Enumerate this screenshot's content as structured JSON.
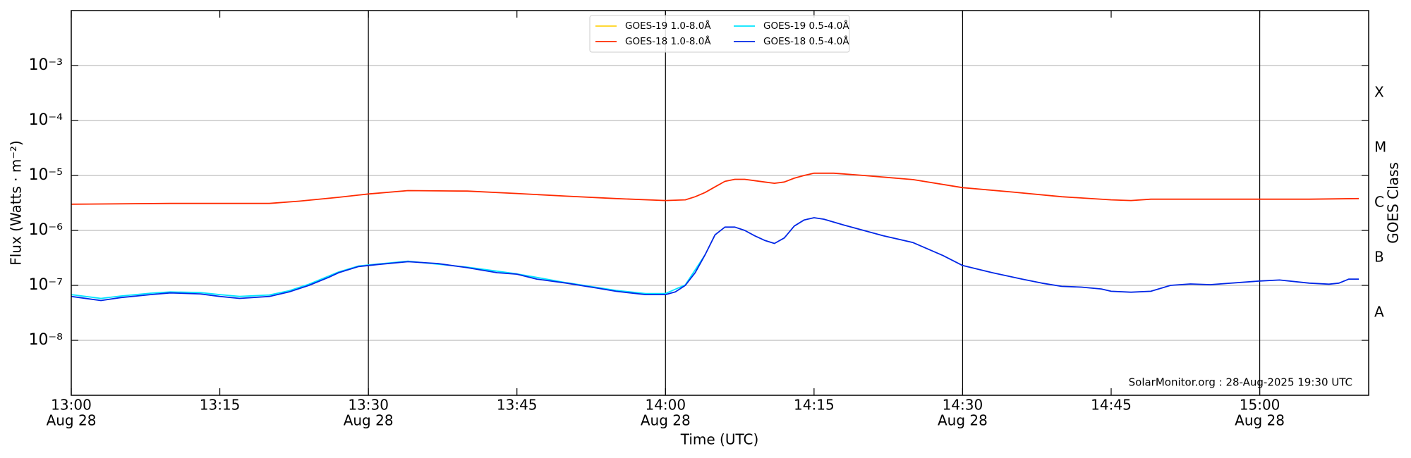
{
  "chart_data": {
    "type": "line",
    "xlabel": "Time (UTC)",
    "ylabel": "Flux (Watts · m⁻²)",
    "y2label": "GOES Class",
    "watermark": "SolarMonitor.org : 28-Aug-2025 19:30 UTC",
    "log_y": true,
    "grid": true,
    "legend": "upper center",
    "xlim": [
      "13:00",
      "15:11"
    ],
    "xticks": [
      "13:00",
      "13:15",
      "13:30",
      "13:45",
      "14:00",
      "14:15",
      "14:30",
      "14:45",
      "15:00"
    ],
    "xtick_sublabels": [
      "Aug 28",
      null,
      "Aug 28",
      null,
      "Aug 28",
      null,
      "Aug 28",
      null,
      "Aug 28"
    ],
    "vlines": [
      "13:30",
      "14:00",
      "14:30",
      "15:00"
    ],
    "ylim": [
      1e-09,
      0.01
    ],
    "yticks": [
      {
        "value": 1e-08,
        "label": "10⁻⁸"
      },
      {
        "value": 1e-07,
        "label": "10⁻⁷"
      },
      {
        "value": 1e-06,
        "label": "10⁻⁶"
      },
      {
        "value": 1e-05,
        "label": "10⁻⁵"
      },
      {
        "value": 0.0001,
        "label": "10⁻⁴"
      },
      {
        "value": 0.001,
        "label": "10⁻³"
      }
    ],
    "classes": {
      "labels": [
        "A",
        "B",
        "C",
        "M",
        "X"
      ],
      "lower": [
        1e-08,
        1e-07,
        1e-06,
        1e-05,
        0.0001
      ]
    },
    "series": [
      {
        "name": "GOES-19 1.0-8.0Å",
        "color": "#ffd21a",
        "x": [],
        "values": []
      },
      {
        "name": "GOES-18 1.0-8.0Å",
        "color": "#ff2a00",
        "x": [
          "13:00",
          "13:10",
          "13:20",
          "13:23",
          "13:27",
          "13:30",
          "13:34",
          "13:40",
          "13:45",
          "13:50",
          "13:55",
          "14:00",
          "14:02",
          "14:03",
          "14:04",
          "14:05",
          "14:06",
          "14:07",
          "14:08",
          "14:10",
          "14:11",
          "14:12",
          "14:13",
          "14:14",
          "14:15",
          "14:17",
          "14:20",
          "14:25",
          "14:30",
          "14:35",
          "14:40",
          "14:45",
          "14:47",
          "14:49",
          "14:55",
          "15:00",
          "15:05",
          "15:10"
        ],
        "values": [
          3e-06,
          3.1e-06,
          3.1e-06,
          3.4e-06,
          4e-06,
          4.6e-06,
          5.3e-06,
          5.2e-06,
          4.7e-06,
          4.2e-06,
          3.8e-06,
          3.5e-06,
          3.6e-06,
          4.1e-06,
          4.9e-06,
          6.2e-06,
          7.8e-06,
          8.5e-06,
          8.5e-06,
          7.6e-06,
          7.2e-06,
          7.6e-06,
          8.9e-06,
          1e-05,
          1.1e-05,
          1.1e-05,
          1e-05,
          8.4e-06,
          6e-06,
          5e-06,
          4.1e-06,
          3.6e-06,
          3.5e-06,
          3.7e-06,
          3.7e-06,
          3.7e-06,
          3.7e-06,
          3.8e-06
        ]
      },
      {
        "name": "GOES-19 0.5-4.0Å",
        "color": "#00e5ff",
        "x": [
          "13:00",
          "13:03",
          "13:05",
          "13:08",
          "13:10",
          "13:13",
          "13:15",
          "13:17",
          "13:20",
          "13:22",
          "13:24",
          "13:27",
          "13:29",
          "13:31",
          "13:34",
          "13:40",
          "13:45",
          "13:50",
          "13:55",
          "13:58",
          "14:00",
          "14:02",
          "14:04"
        ],
        "values": [
          6.8e-08,
          5.8e-08,
          6.4e-08,
          7.2e-08,
          7.6e-08,
          7.4e-08,
          6.8e-08,
          6.3e-08,
          6.7e-08,
          8e-08,
          1.05e-07,
          1.75e-07,
          2.25e-07,
          2.45e-07,
          2.75e-07,
          2.15e-07,
          1.62e-07,
          1.12e-07,
          8.1e-08,
          7.1e-08,
          7.1e-08,
          1.02e-07,
          3.6e-07
        ]
      },
      {
        "name": "GOES-18 0.5-4.0Å",
        "color": "#0026e6",
        "x": [
          "13:00",
          "13:03",
          "13:05",
          "13:08",
          "13:10",
          "13:13",
          "13:15",
          "13:17",
          "13:20",
          "13:22",
          "13:24",
          "13:26",
          "13:27",
          "13:29",
          "13:31",
          "13:34",
          "13:37",
          "13:40",
          "13:43",
          "13:45",
          "13:47",
          "13:50",
          "13:53",
          "13:55",
          "13:58",
          "14:00",
          "14:01",
          "14:02",
          "14:03",
          "14:04",
          "14:05",
          "14:06",
          "14:07",
          "14:08",
          "14:09",
          "14:10",
          "14:11",
          "14:12",
          "14:13",
          "14:14",
          "14:15",
          "14:16",
          "14:18",
          "14:20",
          "14:22",
          "14:25",
          "14:28",
          "14:30",
          "14:33",
          "14:36",
          "14:38",
          "14:40",
          "14:42",
          "14:44",
          "14:45",
          "14:47",
          "14:49",
          "14:51",
          "14:53",
          "14:55",
          "15:00",
          "15:02",
          "15:05",
          "15:07",
          "15:08",
          "15:09",
          "15:10"
        ],
        "values": [
          6.3e-08,
          5.3e-08,
          6e-08,
          6.8e-08,
          7.3e-08,
          7e-08,
          6.3e-08,
          5.8e-08,
          6.3e-08,
          7.6e-08,
          1e-07,
          1.4e-07,
          1.7e-07,
          2.2e-07,
          2.4e-07,
          2.7e-07,
          2.5e-07,
          2.1e-07,
          1.7e-07,
          1.6e-07,
          1.3e-07,
          1.1e-07,
          9e-08,
          7.8e-08,
          6.8e-08,
          6.8e-08,
          7.6e-08,
          1e-07,
          1.7e-07,
          3.6e-07,
          8.3e-07,
          1.15e-06,
          1.15e-06,
          1e-06,
          8e-07,
          6.6e-07,
          5.8e-07,
          7.3e-07,
          1.2e-06,
          1.55e-06,
          1.7e-06,
          1.6e-06,
          1.25e-06,
          1e-06,
          8e-07,
          6e-07,
          3.5e-07,
          2.3e-07,
          1.7e-07,
          1.3e-07,
          1.1e-07,
          9.6e-08,
          9.3e-08,
          8.6e-08,
          7.8e-08,
          7.5e-08,
          7.8e-08,
          1e-07,
          1.06e-07,
          1.03e-07,
          1.2e-07,
          1.25e-07,
          1.1e-07,
          1.05e-07,
          1.1e-07,
          1.3e-07,
          1.3e-07
        ]
      }
    ]
  }
}
